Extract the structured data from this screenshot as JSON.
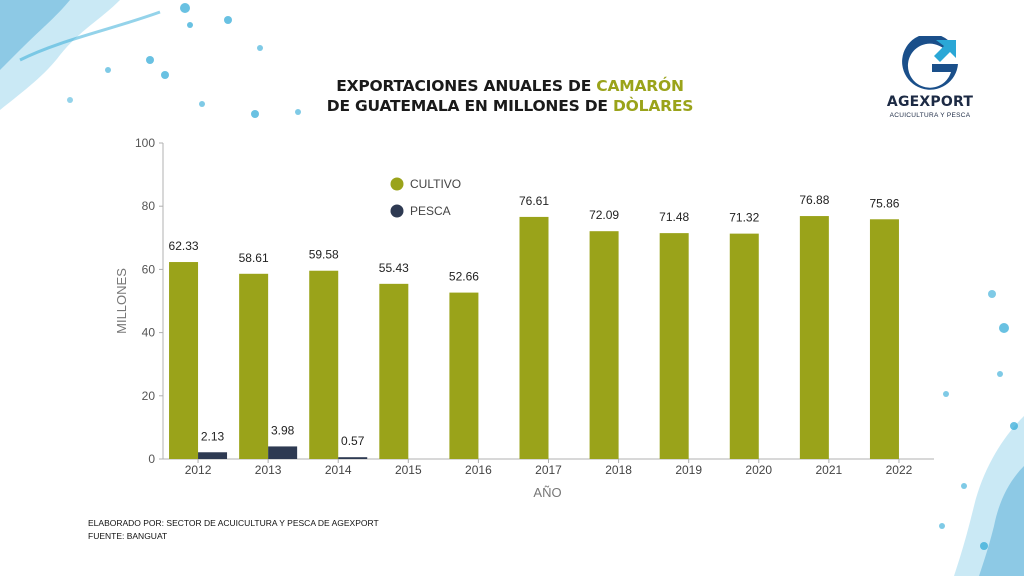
{
  "title": {
    "line1_prefix": "EXPORTACIONES ANUALES DE ",
    "line1_highlight": "CAMARÓN",
    "line2_prefix": "DE GUATEMALA EN MILLONES DE ",
    "line2_highlight": "DÒLARES"
  },
  "logo": {
    "name": "AGEXPORT",
    "subtitle": "ACUICULTURA Y PESCA",
    "icon": "agexport-g-arrow-logo"
  },
  "footer": {
    "line1": "ELABORADO POR: SECTOR DE ACUICULTURA Y PESCA DE AGEXPORT",
    "line2": "FUENTE:  BANGUAT"
  },
  "colors": {
    "cultivo": "#9aa31a",
    "pesca": "#2e3a52",
    "title_highlight": "#9aa31a",
    "splash": "#2aa7d6"
  },
  "chart_data": {
    "type": "bar",
    "categories": [
      "2012",
      "2013",
      "2014",
      "2015",
      "2016",
      "2017",
      "2018",
      "2019",
      "2020",
      "2021",
      "2022"
    ],
    "series": [
      {
        "name": "CULTIVO",
        "values": [
          62.33,
          58.61,
          59.58,
          55.43,
          52.66,
          76.61,
          72.09,
          71.48,
          71.32,
          76.88,
          75.86
        ],
        "labels": [
          "62.33",
          "58.61",
          "59.58",
          "55.43",
          "52.66",
          "76.61",
          "72.09",
          "71.48",
          "71.32",
          "76.88",
          "75.86"
        ]
      },
      {
        "name": "PESCA",
        "values": [
          2.13,
          3.98,
          0.57,
          null,
          null,
          null,
          null,
          null,
          null,
          null,
          null
        ],
        "labels": [
          "2.13",
          "3.98",
          "0.57",
          "",
          "",
          "",
          "",
          "",
          "",
          "",
          ""
        ]
      }
    ],
    "xlabel": "AÑO",
    "ylabel": "MILLONES",
    "ylim": [
      0,
      100
    ],
    "yticks": [
      "0",
      "20",
      "40",
      "60",
      "80",
      "100"
    ],
    "legend_position": "top-left",
    "grid": false
  }
}
